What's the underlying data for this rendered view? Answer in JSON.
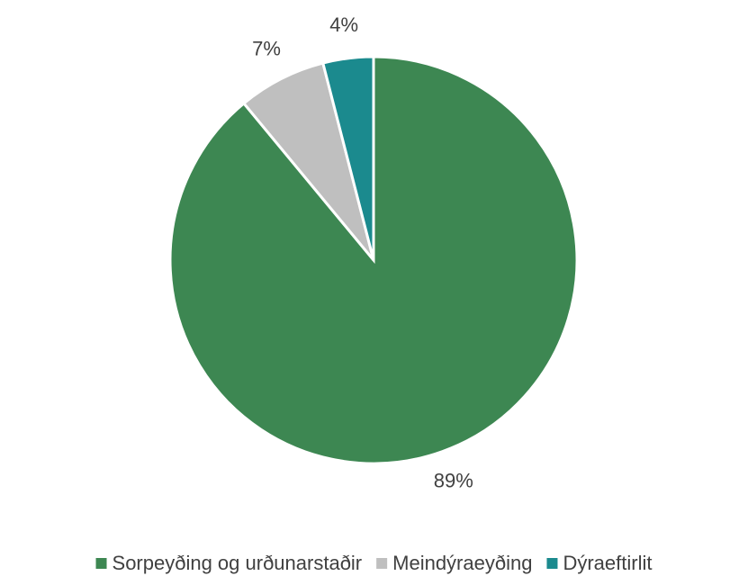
{
  "chart_data": {
    "type": "pie",
    "categories": [
      "Sorpeyðing og urðunarstaðir",
      "Meindýraeyðing",
      "Dýraeftirlit"
    ],
    "values": [
      89,
      7,
      4
    ],
    "value_labels": [
      "89%",
      "7%",
      "4%"
    ],
    "colors": [
      "#3d8752",
      "#bfbfbf",
      "#1b8a8e"
    ],
    "legend": "bottom"
  }
}
